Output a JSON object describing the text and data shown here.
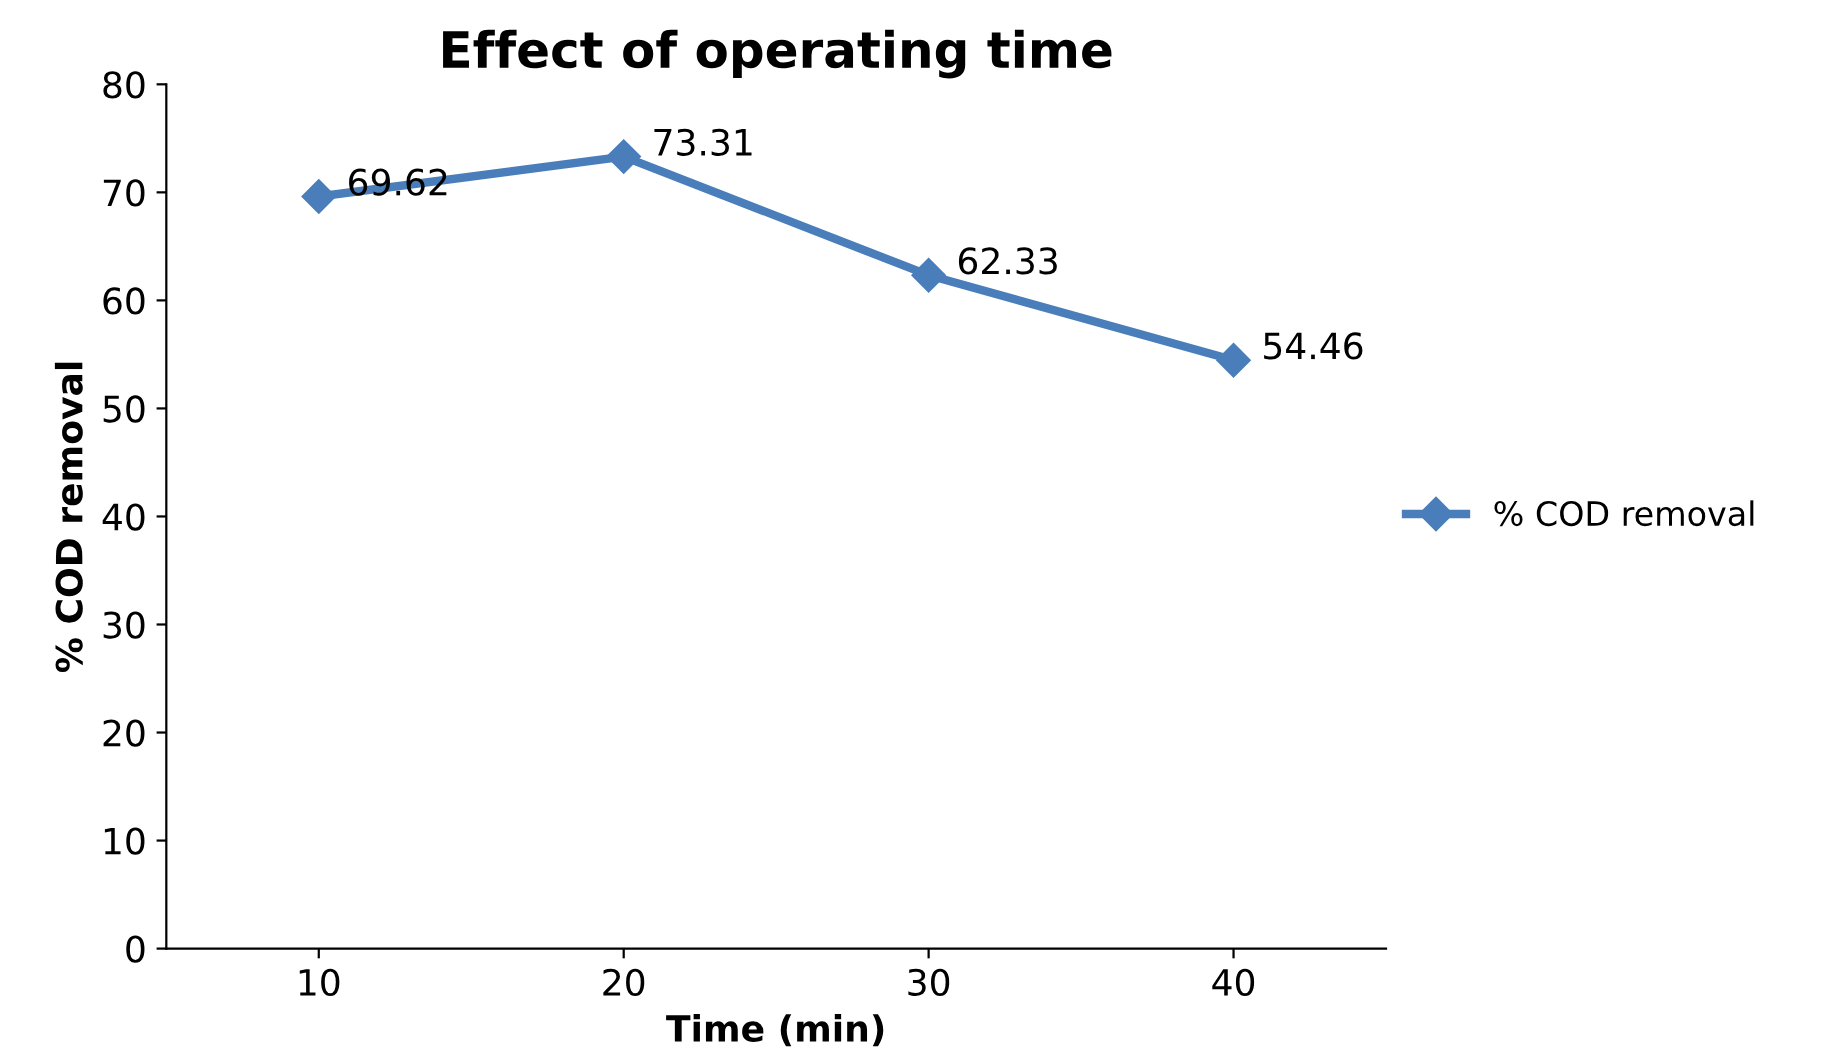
{
  "chart_data": {
    "type": "line",
    "title": "Effect of operating time",
    "xlabel": "Time (min)",
    "ylabel": "% COD removal",
    "categories": [
      "10",
      "20",
      "30",
      "40"
    ],
    "series": [
      {
        "name": "% COD removal",
        "color": "#4a7ebb",
        "values": [
          69.62,
          73.31,
          62.33,
          54.46
        ]
      }
    ],
    "ylim": [
      0,
      80
    ],
    "yticks": [
      0,
      10,
      20,
      30,
      40,
      50,
      60,
      70,
      80
    ],
    "data_labels": true,
    "legend": "right",
    "marker": "diamond",
    "line_style": "solid",
    "grid": false
  }
}
